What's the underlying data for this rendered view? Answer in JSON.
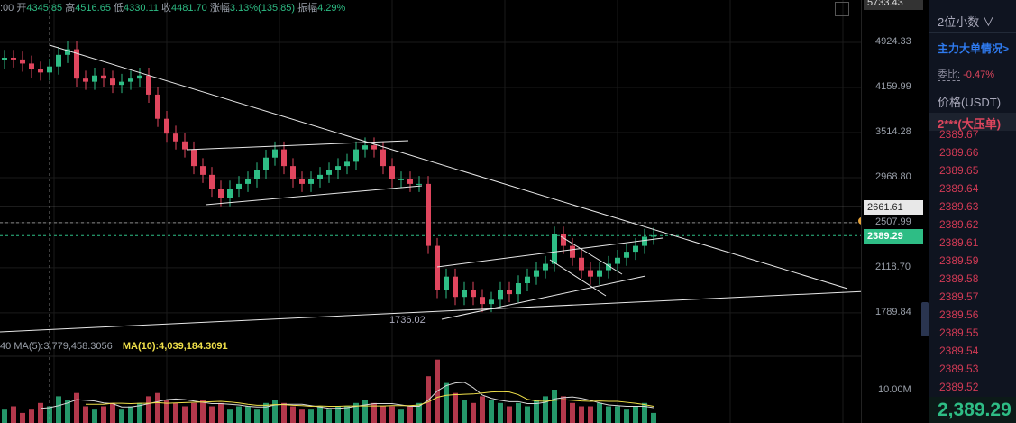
{
  "header": {
    "time_fragment": ":00",
    "open_label": "开",
    "open": "4345.85",
    "high_label": "高",
    "high": "4516.65",
    "low_label": "低",
    "low": "4330.11",
    "close_label": "收",
    "close": "4481.70",
    "change_label": "涨幅",
    "change": "3.13%(135.85)",
    "amplitude_label": "振幅",
    "amplitude": "4.29%"
  },
  "indicators": {
    "prefix": "40",
    "ma5": "MA(5):3,779,458.3056",
    "ma10": "MA(10):4,039,184.3091"
  },
  "price_axis": {
    "top_label": "5733.43",
    "ticks": [
      "4924.33",
      "4159.99",
      "3514.28",
      "2968.80",
      "2507.99",
      "2118.70",
      "1789.84"
    ],
    "tick_values": [
      4924.33,
      4159.99,
      3514.28,
      2968.8,
      2507.99,
      2118.7,
      1789.84
    ],
    "scale": "log",
    "marked_level": "2661.61",
    "current_price": "2389.29",
    "volume_tick": "10.00M",
    "low_annotation": "1736.02"
  },
  "colors": {
    "up": "#2ebd85",
    "down": "#e0465e",
    "ma5": "#d8d8d8",
    "ma10": "#f0e04a",
    "accent_blue": "#2f7bf0"
  },
  "chart_data": {
    "type": "candlestick",
    "closes": [
      4650,
      4620,
      4550,
      4450,
      4400,
      4500,
      4700,
      4800,
      4300,
      4250,
      4350,
      4300,
      4200,
      4250,
      4300,
      4350,
      4050,
      3700,
      3500,
      3400,
      3300,
      3100,
      3000,
      2850,
      2750,
      2850,
      2900,
      2950,
      3050,
      3200,
      3300,
      3100,
      2950,
      2900,
      2950,
      3000,
      3050,
      3100,
      3150,
      3300,
      3350,
      3300,
      3100,
      2950,
      2950,
      2900,
      2900,
      2300,
      1950,
      2050,
      1900,
      1950,
      1900,
      1850,
      1880,
      1950,
      1920,
      2000,
      2050,
      2100,
      2150,
      2400,
      2300,
      2200,
      2100,
      2050,
      2100,
      2150,
      2200,
      2250,
      2300,
      2380,
      2389.29
    ],
    "volumes_m": [
      4,
      5,
      3,
      4,
      6,
      5,
      8,
      7,
      9,
      5,
      4,
      5,
      6,
      4,
      5,
      6,
      8,
      9,
      7,
      6,
      5,
      6,
      7,
      5,
      6,
      4,
      5,
      5,
      4,
      6,
      7,
      6,
      5,
      4,
      4,
      5,
      4,
      5,
      5,
      6,
      7,
      6,
      5,
      5,
      4,
      5,
      6,
      14,
      19,
      12,
      9,
      7,
      6,
      8,
      7,
      6,
      5,
      6,
      5,
      7,
      8,
      10,
      8,
      6,
      5,
      5,
      6,
      5,
      5,
      4,
      5,
      6,
      3
    ]
  },
  "sidebar": {
    "decimals": "2位小数",
    "decimals_caret": "∨",
    "big_orders": "主力大单情况",
    "big_orders_arrow": ">",
    "ratio_label": "委比:",
    "ratio_value": "-0.47%",
    "price_header": "价格(USDT)",
    "big_ask": "2***(大压单)",
    "asks": [
      "2389.67",
      "2389.66",
      "2389.65",
      "2389.64",
      "2389.63",
      "2389.62",
      "2389.61",
      "2389.59",
      "2389.58",
      "2389.57",
      "2389.56",
      "2389.55",
      "2389.54",
      "2389.53",
      "2389.52"
    ],
    "last_price": "2,389.29"
  }
}
